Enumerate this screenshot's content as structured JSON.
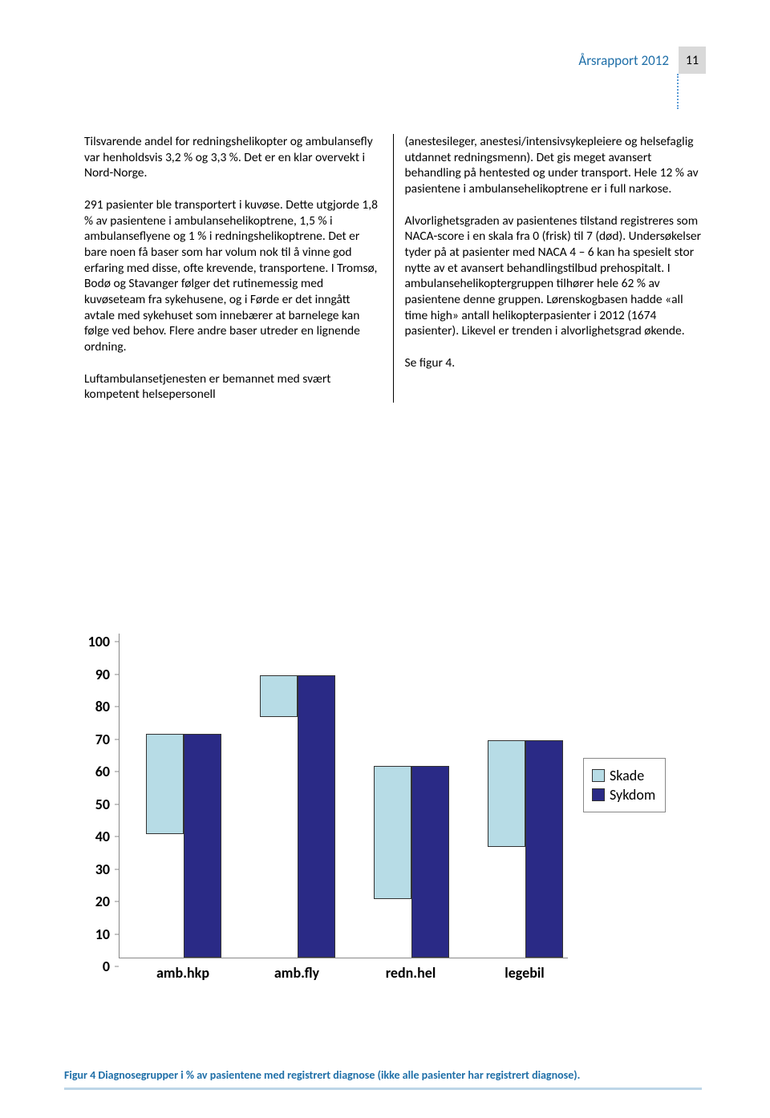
{
  "header": {
    "title": "Årsrapport 2012",
    "page_number": "11"
  },
  "body": {
    "left": {
      "p1": "Tilsvarende andel for redningshelikopter og ambulansefly var henholdsvis 3,2 % og 3,3 %. Det er en klar overvekt i Nord-Norge.",
      "p2": "291 pasienter ble transportert i kuvøse. Dette utgjorde 1,8 % av pasientene i ambulansehelikoptrene, 1,5 % i ambulanseflyene og 1 % i redningshelikoptrene. Det er bare noen få baser som har volum nok til å vinne god erfaring med disse, ofte krevende, transportene. I Tromsø, Bodø og Stavanger følger det rutinemessig med kuvøseteam fra sykehusene, og i Førde er det inngått avtale med sykehuset som innebærer at barnelege kan følge ved behov. Flere andre baser utreder en lignende ordning.",
      "p3": "Luftambulansetjenesten er bemannet med svært kompetent helsepersonell"
    },
    "right": {
      "p1": "(anestesileger, anestesi/intensivsykepleiere og helsefaglig utdannet redningsmenn). Det gis meget avansert behandling på hentested og under transport. Hele 12 % av pasientene i ambulansehelikoptrene er i full narkose.",
      "p2": "Alvorlighetsgraden av pasientenes tilstand registreres som NACA-score i en skala fra 0 (frisk) til 7 (død). Undersøkelser tyder på at pasienter med NACA 4 – 6 kan ha spesielt stor nytte av et avansert behandlingstilbud prehospitalt. I ambulansehelikoptergruppen tilhører hele 62 % av pasientene denne gruppen. Lørenskogbasen hadde «all time high» antall helikopterpasienter i 2012 (1674 pasienter). Likevel er trenden i alvorlighetsgrad økende.",
      "p3": "Se figur 4."
    }
  },
  "chart": {
    "type": "bar",
    "categories": [
      "amb.hkp",
      "amb.fly",
      "redn.hel",
      "legebil"
    ],
    "series": [
      {
        "name": "Skade",
        "color": "#b7dce6",
        "values": [
          31,
          13,
          41,
          33
        ]
      },
      {
        "name": "Sykdom",
        "color": "#2a2a86",
        "values": [
          69,
          87,
          59,
          67
        ]
      }
    ],
    "ylim": [
      0,
      100
    ],
    "ytick_step": 10,
    "bar_border": "#333333",
    "axis_color": "#888888",
    "label_fontsize": 18,
    "label_fontweight": "bold",
    "background": "#ffffff"
  },
  "caption": "Figur 4 Diagnosegrupper i % av pasientene med registrert diagnose (ikke alle pasienter har registrert diagnose)."
}
